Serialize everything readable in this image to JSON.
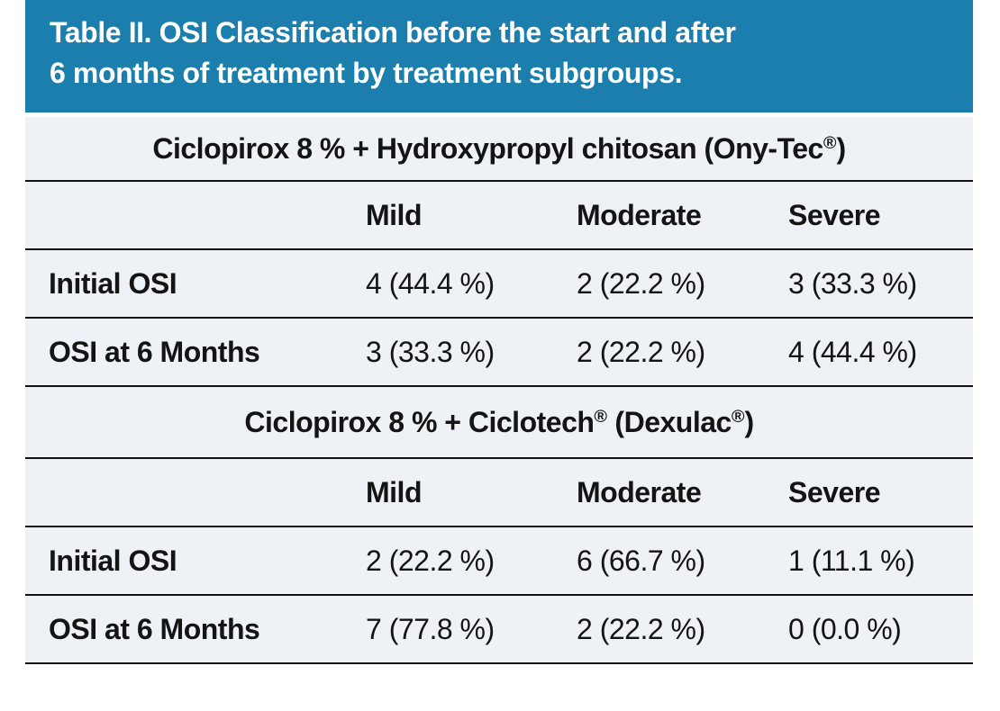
{
  "caption": {
    "line1": "Table II. OSI Classification before the start and after",
    "line2": "6 months of treatment by treatment subgroups."
  },
  "colors": {
    "caption_band": "#1b7eac",
    "caption_text": "#ffffff",
    "table_background": "#eef1f6",
    "rule_line": "#111111",
    "body_text": "#141414"
  },
  "sections": [
    {
      "title_pre": "Ciclopirox 8 % + Hydroxypropyl chitosan (Ony-Tec",
      "title_sup": "®",
      "title_post": ")",
      "columns": [
        "Mild",
        "Moderate",
        "Severe"
      ],
      "rows": [
        {
          "label": "Initial OSI",
          "values": [
            "4 (44.4 %)",
            "2 (22.2 %)",
            "3 (33.3 %)"
          ]
        },
        {
          "label": "OSI at 6 Months",
          "values": [
            "3 (33.3 %)",
            "2 (22.2 %)",
            "4 (44.4 %)"
          ]
        }
      ]
    },
    {
      "title_pre": "Ciclopirox 8 % + Ciclotech",
      "title_sup": "®",
      "title_mid": " (Dexulac",
      "title_sup2": "®",
      "title_post": ")",
      "columns": [
        "Mild",
        "Moderate",
        "Severe"
      ],
      "rows": [
        {
          "label": "Initial OSI",
          "values": [
            "2 (22.2 %)",
            "6 (66.7 %)",
            "1 (11.1 %)"
          ]
        },
        {
          "label": "OSI at 6 Months",
          "values": [
            "7 (77.8 %)",
            "2 (22.2 %)",
            "0 (0.0 %)"
          ]
        }
      ]
    }
  ],
  "chart_data": {
    "type": "table",
    "title": "Table II. OSI Classification before the start and after 6 months of treatment by treatment subgroups.",
    "subtables": [
      {
        "group": "Ciclopirox 8 % + Hydroxypropyl chitosan (Ony-Tec®)",
        "columns": [
          "Mild",
          "Moderate",
          "Severe"
        ],
        "rows": [
          {
            "label": "Initial OSI",
            "counts": [
              4,
              2,
              3
            ],
            "percents": [
              44.4,
              22.2,
              33.3
            ]
          },
          {
            "label": "OSI at 6 Months",
            "counts": [
              3,
              2,
              4
            ],
            "percents": [
              33.3,
              22.2,
              44.4
            ]
          }
        ]
      },
      {
        "group": "Ciclopirox 8 % + Ciclotech® (Dexulac®)",
        "columns": [
          "Mild",
          "Moderate",
          "Severe"
        ],
        "rows": [
          {
            "label": "Initial OSI",
            "counts": [
              2,
              6,
              1
            ],
            "percents": [
              22.2,
              66.7,
              11.1
            ]
          },
          {
            "label": "OSI at 6 Months",
            "counts": [
              7,
              2,
              0
            ],
            "percents": [
              77.8,
              22.2,
              0.0
            ]
          }
        ]
      }
    ]
  }
}
